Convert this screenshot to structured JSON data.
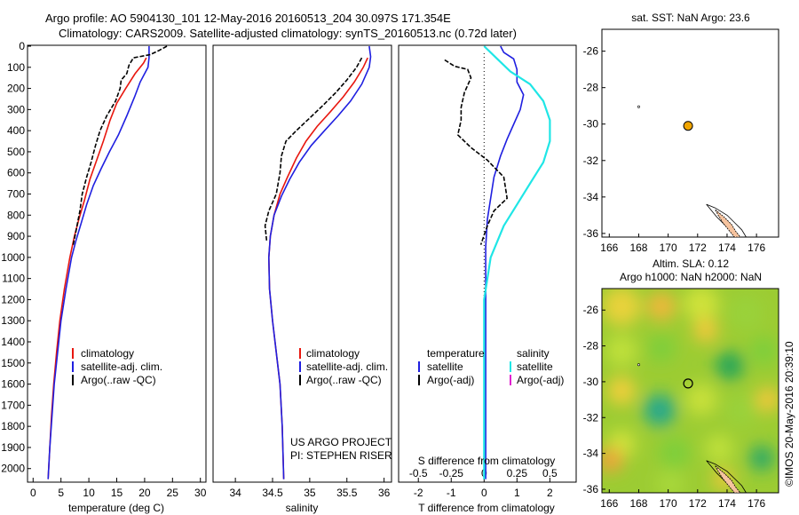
{
  "header": {
    "title_line1": "Argo profile: AO 5904130_101 12-May-2016 20160513_204 30.097S 171.354E",
    "title_line2": "Climatology: CARS2009. Satellite-adjusted climatology: synTS_20160513.nc (0.72d later)"
  },
  "project": {
    "line1": "US ARGO PROJECT",
    "line2": "PI: STEPHEN RISER"
  },
  "stamp": "©IMOS 20-May-2016 20:39:10",
  "colors": {
    "climatology": "#e8170f",
    "satellite": "#1f1fe0",
    "argo": "#000000",
    "salinity_sat": "#1fe6e6",
    "salinity_argo": "#e020d0",
    "land": "#f6c39e",
    "float": "#f0a500"
  },
  "chart_data": [
    {
      "id": "temperature",
      "type": "line",
      "xlabel": "temperature (deg C)",
      "ylabel": "",
      "xlim": [
        -1,
        31
      ],
      "ylim": [
        2060,
        0
      ],
      "xticks": [
        0,
        5,
        10,
        15,
        20,
        25,
        30
      ],
      "yticks": [
        0,
        100,
        200,
        300,
        400,
        500,
        600,
        700,
        800,
        900,
        1000,
        1100,
        1200,
        1300,
        1400,
        1500,
        1600,
        1700,
        1800,
        1900,
        2000
      ],
      "legend": [
        "climatology",
        "satellite-adj. clim.",
        "Argo(..raw -QC)"
      ],
      "series": [
        {
          "name": "climatology",
          "color": "#e8170f",
          "points": [
            [
              20.3,
              55
            ],
            [
              19.8,
              80
            ],
            [
              18.3,
              130
            ],
            [
              16.6,
              200
            ],
            [
              15,
              270
            ],
            [
              13.8,
              350
            ],
            [
              12.6,
              450
            ],
            [
              11.4,
              540
            ],
            [
              10.2,
              630
            ],
            [
              9.2,
              730
            ],
            [
              8.2,
              820
            ],
            [
              7.4,
              900
            ],
            [
              6.6,
              1000
            ],
            [
              5.6,
              1150
            ],
            [
              4.8,
              1300
            ],
            [
              4.2,
              1450
            ],
            [
              3.7,
              1600
            ],
            [
              3.3,
              1750
            ],
            [
              3,
              1900
            ],
            [
              2.7,
              2050
            ]
          ]
        },
        {
          "name": "satellite-adj. clim.",
          "color": "#1f1fe0",
          "points": [
            [
              20.8,
              0
            ],
            [
              20.8,
              55
            ],
            [
              20.6,
              100
            ],
            [
              19.2,
              170
            ],
            [
              18.2,
              240
            ],
            [
              16.8,
              330
            ],
            [
              15.3,
              420
            ],
            [
              13.7,
              500
            ],
            [
              12.2,
              580
            ],
            [
              10.8,
              660
            ],
            [
              9.6,
              750
            ],
            [
              8.6,
              840
            ],
            [
              7.7,
              920
            ],
            [
              6.9,
              1000
            ],
            [
              5.9,
              1150
            ],
            [
              5,
              1300
            ],
            [
              4.4,
              1450
            ],
            [
              3.8,
              1600
            ],
            [
              3.4,
              1750
            ],
            [
              3,
              1900
            ],
            [
              2.7,
              2050
            ]
          ]
        },
        {
          "name": "Argo(..raw -QC)",
          "color": "#000000",
          "points": [
            [
              24,
              0
            ],
            [
              22.6,
              20
            ],
            [
              21,
              40
            ],
            [
              18,
              55
            ],
            [
              17.2,
              90
            ],
            [
              16.8,
              130
            ],
            [
              15.8,
              160
            ],
            [
              15.6,
              200
            ],
            [
              14.8,
              260
            ],
            [
              13.2,
              330
            ],
            [
              12,
              400
            ],
            [
              11.2,
              470
            ],
            [
              10.4,
              550
            ],
            [
              9.6,
              620
            ],
            [
              8.8,
              700
            ],
            [
              8.4,
              780
            ],
            [
              7.8,
              860
            ],
            [
              7.2,
              940
            ]
          ]
        }
      ]
    },
    {
      "id": "salinity",
      "type": "line",
      "xlabel": "salinity",
      "ylabel": "",
      "xlim": [
        33.7,
        36.1
      ],
      "ylim": [
        2060,
        0
      ],
      "xticks": [
        34,
        34.5,
        35,
        35.5,
        36
      ],
      "xticklabels": [
        "34",
        "34.5",
        "35",
        "35.5",
        "36"
      ],
      "legend": [
        "climatology",
        "satellite-adj. clim.",
        "Argo(..raw -QC)"
      ],
      "series": [
        {
          "name": "climatology",
          "color": "#e8170f",
          "points": [
            [
              35.78,
              55
            ],
            [
              35.72,
              100
            ],
            [
              35.6,
              170
            ],
            [
              35.45,
              240
            ],
            [
              35.28,
              310
            ],
            [
              35.1,
              380
            ],
            [
              34.95,
              450
            ],
            [
              34.82,
              530
            ],
            [
              34.7,
              620
            ],
            [
              34.6,
              700
            ],
            [
              34.52,
              800
            ],
            [
              34.47,
              900
            ],
            [
              34.45,
              1000
            ],
            [
              34.46,
              1150
            ],
            [
              34.5,
              1300
            ],
            [
              34.55,
              1450
            ],
            [
              34.6,
              1600
            ],
            [
              34.63,
              1800
            ],
            [
              34.65,
              2050
            ]
          ]
        },
        {
          "name": "satellite-adj. clim.",
          "color": "#1f1fe0",
          "points": [
            [
              35.8,
              0
            ],
            [
              35.82,
              50
            ],
            [
              35.8,
              100
            ],
            [
              35.7,
              180
            ],
            [
              35.55,
              260
            ],
            [
              35.38,
              330
            ],
            [
              35.2,
              400
            ],
            [
              35.02,
              470
            ],
            [
              34.86,
              550
            ],
            [
              34.73,
              630
            ],
            [
              34.62,
              710
            ],
            [
              34.52,
              800
            ],
            [
              34.47,
              900
            ],
            [
              34.45,
              1000
            ],
            [
              34.46,
              1150
            ],
            [
              34.5,
              1300
            ],
            [
              34.55,
              1450
            ],
            [
              34.6,
              1600
            ],
            [
              34.63,
              1800
            ],
            [
              34.65,
              2050
            ]
          ]
        },
        {
          "name": "Argo(..raw -QC)",
          "color": "#000000",
          "points": [
            [
              35.7,
              55
            ],
            [
              35.63,
              100
            ],
            [
              35.5,
              160
            ],
            [
              35.35,
              220
            ],
            [
              35.18,
              280
            ],
            [
              35,
              340
            ],
            [
              34.82,
              400
            ],
            [
              34.68,
              450
            ],
            [
              34.62,
              520
            ],
            [
              34.6,
              600
            ],
            [
              34.55,
              700
            ],
            [
              34.45,
              780
            ],
            [
              34.4,
              850
            ],
            [
              34.42,
              920
            ]
          ]
        }
      ]
    },
    {
      "id": "difference",
      "type": "line",
      "xlabel": "T difference from climatology",
      "x2label": "S difference from climatology",
      "xlim": [
        -2.6,
        2.8
      ],
      "ylim": [
        2060,
        0
      ],
      "xticks": [
        -2,
        -1,
        0,
        1,
        2
      ],
      "x2ticks": [
        -0.5,
        -0.25,
        0,
        0.25,
        0.5
      ],
      "x2ticklabels": [
        "-0.5",
        "-0.25",
        "0",
        "0.25",
        "0.5"
      ],
      "legend": {
        "col1_title": "temperature",
        "col1": [
          "satellite",
          "Argo(-adj)"
        ],
        "col2_title": "salinity",
        "col2": [
          "satellite",
          "Argo(-adj)"
        ]
      },
      "series": [
        {
          "name": "temperature satellite",
          "color": "#1f1fe0",
          "points": [
            [
              0.5,
              0
            ],
            [
              0.6,
              30
            ],
            [
              0.9,
              60
            ],
            [
              1.0,
              110
            ],
            [
              1.0,
              170
            ],
            [
              1.2,
              230
            ],
            [
              1.1,
              300
            ],
            [
              0.9,
              370
            ],
            [
              0.7,
              440
            ],
            [
              0.5,
              520
            ],
            [
              0.3,
              620
            ],
            [
              0.2,
              720
            ],
            [
              0.1,
              820
            ],
            [
              0.05,
              950
            ],
            [
              0.05,
              1200
            ],
            [
              0.05,
              1600
            ],
            [
              0.05,
              2050
            ]
          ]
        },
        {
          "name": "temperature Argo(-adj)",
          "color": "#000000",
          "points": [
            [
              -1.2,
              65
            ],
            [
              -0.9,
              95
            ],
            [
              -0.5,
              110
            ],
            [
              -0.4,
              150
            ],
            [
              -0.6,
              220
            ],
            [
              -0.7,
              290
            ],
            [
              -0.7,
              350
            ],
            [
              -0.8,
              420
            ],
            [
              -0.4,
              480
            ],
            [
              0.1,
              540
            ],
            [
              0.6,
              620
            ],
            [
              0.7,
              720
            ],
            [
              0.3,
              780
            ],
            [
              0.1,
              850
            ],
            [
              -0.1,
              940
            ]
          ]
        },
        {
          "name": "salinity satellite",
          "color": "#1fe6e6",
          "points": [
            [
              0,
              0
            ],
            [
              0.1,
              60
            ],
            [
              0.2,
              120
            ],
            [
              0.35,
              180
            ],
            [
              0.45,
              260
            ],
            [
              0.5,
              350
            ],
            [
              0.5,
              450
            ],
            [
              0.45,
              550
            ],
            [
              0.35,
              650
            ],
            [
              0.25,
              750
            ],
            [
              0.15,
              850
            ],
            [
              0.05,
              1000
            ],
            [
              0,
              1200
            ],
            [
              0,
              1500
            ],
            [
              0,
              1800
            ],
            [
              0,
              2050
            ]
          ]
        }
      ]
    },
    {
      "id": "sst-map",
      "type": "scatter",
      "title": "sat. SST: NaN Argo: 23.6",
      "xlim": [
        165.5,
        177.5
      ],
      "ylim": [
        -36.2,
        -24.8
      ],
      "xticks": [
        166,
        168,
        170,
        172,
        174,
        176
      ],
      "yticks": [
        -26,
        -28,
        -30,
        -32,
        -34,
        -36
      ],
      "points": [
        [
          171.354,
          -30.097
        ]
      ]
    },
    {
      "id": "sla-map",
      "type": "heatmap",
      "title_line1": "Altim. SLA: 0.12",
      "title_line2": "Argo h1000: NaN h2000: NaN",
      "xlim": [
        165.5,
        177.5
      ],
      "ylim": [
        -36.2,
        -24.8
      ],
      "xticks": [
        166,
        168,
        170,
        172,
        174,
        176
      ],
      "yticks": [
        -26,
        -28,
        -30,
        -32,
        -34,
        -36
      ],
      "points": [
        [
          171.354,
          -30.097
        ]
      ]
    }
  ]
}
